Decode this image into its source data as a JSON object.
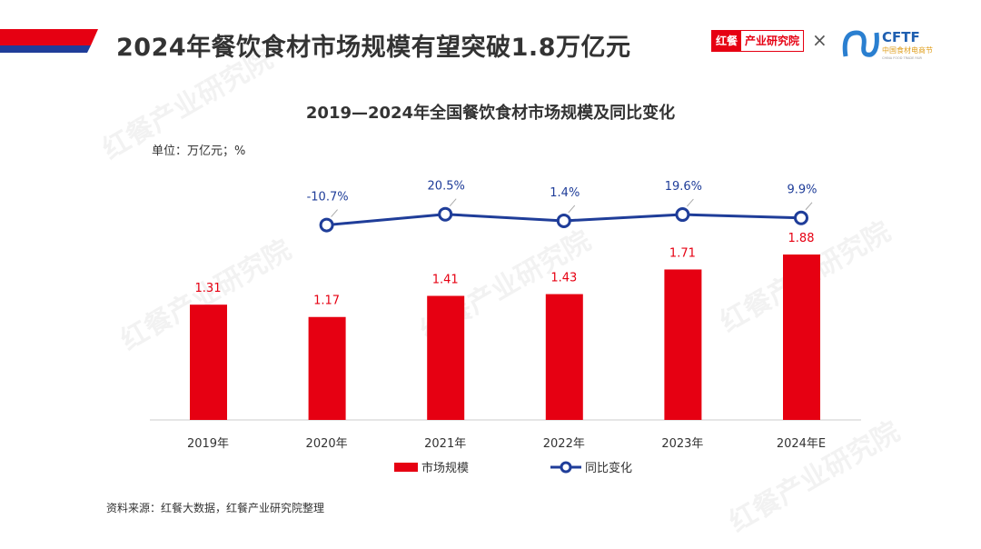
{
  "header": {
    "title": "2024年餐饮食材市场规模有望突破1.8万亿元"
  },
  "logos": {
    "hongcan_a": "红餐",
    "hongcan_b": "产业研究院",
    "times": "×",
    "cftf": "CFTF",
    "cftf_cn": "中国食材电商节",
    "cftf_en": "CHINA FOOD TRADE FAIR"
  },
  "watermark": "红餐产业研究院",
  "colors": {
    "bar": "#e60012",
    "line": "#1f3d99",
    "accent_blue": "#1f3d99"
  },
  "chart_data": {
    "type": "bar+line",
    "title": "2019—2024年全国餐饮食材市场规模及同比变化",
    "unit": "单位：万亿元；%",
    "categories": [
      "2019年",
      "2020年",
      "2021年",
      "2022年",
      "2023年",
      "2024年E"
    ],
    "series": [
      {
        "name": "市场规模",
        "type": "bar",
        "values": [
          1.31,
          1.17,
          1.41,
          1.43,
          1.71,
          1.88
        ],
        "labels": [
          "1.31",
          "1.17",
          "1.41",
          "1.43",
          "1.71",
          "1.88"
        ]
      },
      {
        "name": "同比变化",
        "type": "line",
        "values": [
          null,
          -10.7,
          20.5,
          1.4,
          19.6,
          9.9
        ],
        "labels": [
          "",
          "-10.7%",
          "20.5%",
          "1.4%",
          "19.6%",
          "9.9%"
        ]
      }
    ],
    "legend": "bottom",
    "grid": false
  },
  "footer": {
    "source": "资料来源：红餐大数据，红餐产业研究院整理"
  }
}
